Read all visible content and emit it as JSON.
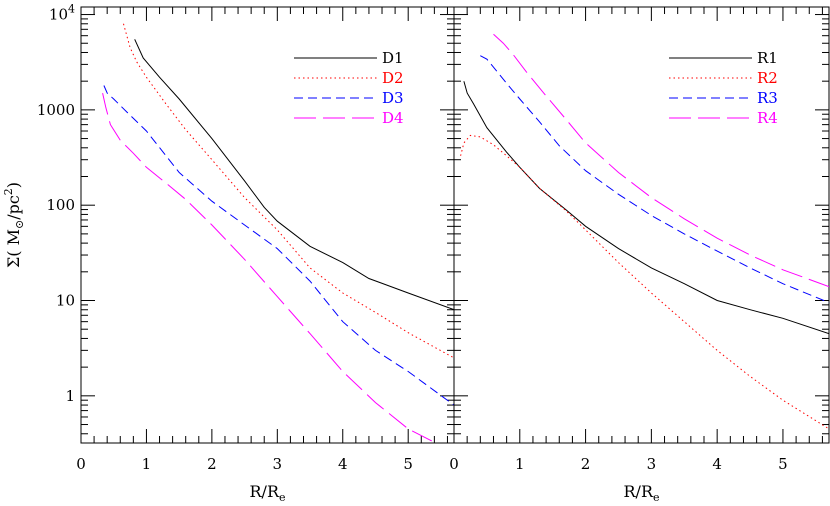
{
  "chart_data": [
    {
      "type": "line",
      "panel": "left",
      "xlabel": "R/R",
      "xlabel_sub": "e",
      "ylabel": "Σ( M",
      "ylabel_sub": "⊙",
      "ylabel_tail": "/pc",
      "ylabel_sup": "2",
      "ylabel_end": ")",
      "yscale": "log",
      "xlim": [
        0,
        5.7
      ],
      "ylim": [
        0.32,
        12000
      ],
      "xticks": [
        "0",
        "1",
        "2",
        "3",
        "4",
        "5"
      ],
      "yticks": [
        {
          "value": 1,
          "label": "1"
        },
        {
          "value": 10,
          "label": "10"
        },
        {
          "value": 100,
          "label": "100"
        },
        {
          "value": 1000,
          "label": "1000"
        },
        {
          "value": 10000,
          "label": "10",
          "sup": "4"
        }
      ],
      "legend_position": "top-right",
      "series": [
        {
          "name": "D1",
          "style": "solid",
          "color": "#000000",
          "x": [
            0.82,
            0.95,
            1.2,
            1.5,
            2.0,
            2.5,
            2.8,
            3.0,
            3.5,
            4.0,
            4.4,
            5.0,
            5.7
          ],
          "y": [
            5500,
            3500,
            2200,
            1300,
            500,
            180,
            95,
            68,
            37,
            25,
            17,
            12,
            8
          ]
        },
        {
          "name": "D2",
          "style": "dotted",
          "color": "#ff0000",
          "x": [
            0.65,
            0.75,
            0.85,
            1.0,
            1.3,
            1.6,
            2.0,
            2.5,
            3.0,
            3.5,
            4.0,
            4.5,
            5.0,
            5.7
          ],
          "y": [
            8000,
            4500,
            3200,
            2200,
            1150,
            620,
            300,
            120,
            55,
            22,
            12,
            7.5,
            4.6,
            2.5
          ]
        },
        {
          "name": "D3",
          "style": "dashed",
          "color": "#0000ff",
          "x": [
            0.35,
            0.4,
            0.5,
            0.7,
            1.0,
            1.5,
            2.0,
            2.5,
            3.0,
            3.5,
            4.0,
            4.5,
            5.0,
            5.7
          ],
          "y": [
            1800,
            1500,
            1300,
            950,
            600,
            220,
            110,
            62,
            35,
            16,
            6,
            3,
            1.8,
            0.8
          ]
        },
        {
          "name": "D4",
          "style": "longdash",
          "color": "#ff00ff",
          "x": [
            0.33,
            0.38,
            0.45,
            0.6,
            0.8,
            1.0,
            1.3,
            1.6,
            2.0,
            2.5,
            3.0,
            3.5,
            4.0,
            4.5,
            5.0,
            5.5
          ],
          "y": [
            1500,
            1050,
            700,
            480,
            350,
            250,
            170,
            115,
            62,
            27,
            11,
            4.5,
            1.8,
            0.85,
            0.45,
            0.3
          ]
        }
      ]
    },
    {
      "type": "line",
      "panel": "right",
      "xlabel": "R/R",
      "xlabel_sub": "e",
      "yscale": "log",
      "xlim": [
        0,
        5.7
      ],
      "ylim": [
        0.32,
        12000
      ],
      "xticks": [
        "0",
        "1",
        "2",
        "3",
        "4",
        "5"
      ],
      "legend_position": "top-right",
      "series": [
        {
          "name": "R1",
          "style": "solid",
          "color": "#000000",
          "x": [
            0.15,
            0.2,
            0.3,
            0.5,
            0.8,
            1.0,
            1.3,
            1.7,
            2.0,
            2.5,
            3.0,
            3.5,
            4.0,
            4.5,
            5.0,
            5.7
          ],
          "y": [
            2000,
            1500,
            1150,
            650,
            360,
            250,
            150,
            90,
            60,
            35,
            22,
            15,
            10,
            8,
            6.5,
            4.5
          ]
        },
        {
          "name": "R2",
          "style": "dotted",
          "color": "#ff0000",
          "x": [
            0.1,
            0.15,
            0.25,
            0.4,
            0.6,
            0.8,
            1.0,
            1.3,
            1.7,
            2.0,
            2.5,
            3.0,
            3.5,
            4.0,
            4.5,
            5.0,
            5.7
          ],
          "y": [
            330,
            450,
            540,
            520,
            430,
            330,
            250,
            150,
            88,
            55,
            25,
            12,
            6,
            3,
            1.6,
            0.9,
            0.45
          ]
        },
        {
          "name": "R3",
          "style": "dashed",
          "color": "#0000ff",
          "x": [
            0.4,
            0.5,
            0.6,
            0.8,
            1.0,
            1.3,
            1.6,
            2.0,
            2.5,
            3.0,
            3.5,
            4.0,
            4.5,
            5.0,
            5.7
          ],
          "y": [
            3700,
            3400,
            2800,
            1900,
            1300,
            750,
            420,
            230,
            130,
            78,
            50,
            33,
            22,
            15,
            9.5
          ]
        },
        {
          "name": "R4",
          "style": "longdash",
          "color": "#ff00ff",
          "x": [
            0.6,
            0.75,
            0.9,
            1.1,
            1.4,
            1.7,
            2.0,
            2.5,
            3.0,
            3.5,
            4.0,
            4.5,
            5.0,
            5.7
          ],
          "y": [
            6200,
            5000,
            3800,
            2500,
            1400,
            800,
            450,
            220,
            120,
            72,
            45,
            30,
            21,
            14
          ]
        }
      ]
    }
  ]
}
